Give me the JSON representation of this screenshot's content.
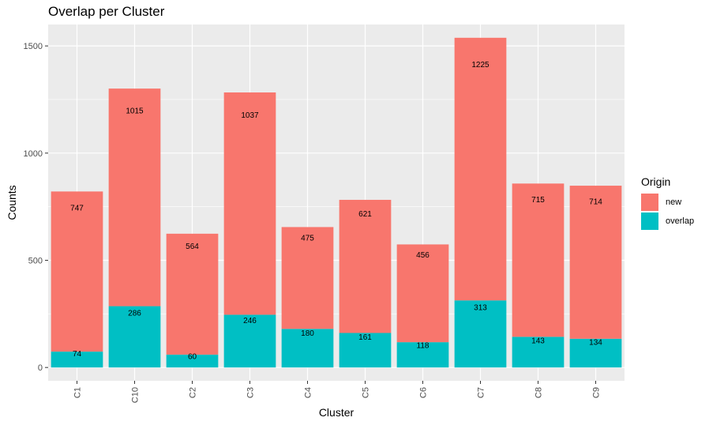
{
  "chart_data": {
    "type": "bar",
    "stacked": true,
    "title": "Overlap per Cluster",
    "xlabel": "Cluster",
    "ylabel": "Counts",
    "ylim": [
      -62,
      1600
    ],
    "yticks": [
      0,
      500,
      1000,
      1500
    ],
    "categories": [
      "C1",
      "C10",
      "C2",
      "C3",
      "C4",
      "C5",
      "C6",
      "C7",
      "C8",
      "C9"
    ],
    "series": [
      {
        "name": "new",
        "color": "#F8766D",
        "values": [
          747,
          1015,
          564,
          1037,
          475,
          621,
          456,
          1225,
          715,
          714
        ]
      },
      {
        "name": "overlap",
        "color": "#00BFC4",
        "values": [
          74,
          286,
          60,
          246,
          180,
          161,
          118,
          313,
          143,
          134
        ]
      }
    ],
    "legend": {
      "title": "Origin",
      "position": "right"
    },
    "grid": true,
    "panel_background": "#EBEBEB"
  }
}
